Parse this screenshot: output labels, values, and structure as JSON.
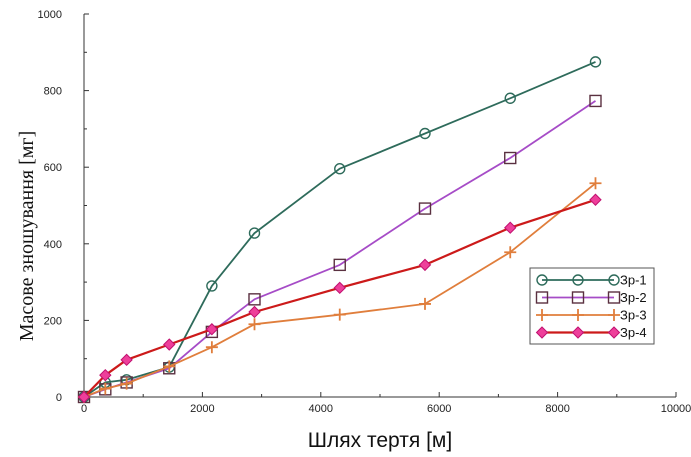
{
  "chart_data": {
    "type": "line",
    "title": "",
    "xlabel": "Шлях тертя [м]",
    "ylabel": "Масове зношування [мг]",
    "xlim": [
      0,
      10000
    ],
    "ylim": [
      0,
      1000
    ],
    "xticks": [
      "0",
      "2000",
      "4000",
      "6000",
      "8000",
      "10000"
    ],
    "yticks": [
      "0",
      "200",
      "400",
      "600",
      "800",
      "1000"
    ],
    "grid": false,
    "legend_position": "right",
    "series": [
      {
        "name": "Зр-1",
        "color": "#2e6b5b",
        "marker": "circle",
        "x": [
          0,
          360,
          720,
          1440,
          2160,
          2880,
          4320,
          5760,
          7200,
          8640
        ],
        "y": [
          0,
          38,
          45,
          78,
          290,
          428,
          596,
          688,
          780,
          875
        ]
      },
      {
        "name": "Зр-2",
        "color": "#a64cc7",
        "marker": "square",
        "x": [
          0,
          360,
          720,
          1440,
          2160,
          2880,
          4320,
          5760,
          7200,
          8640
        ],
        "y": [
          0,
          20,
          38,
          75,
          170,
          255,
          345,
          492,
          624,
          773
        ]
      },
      {
        "name": "Зр-3",
        "color": "#e07e3c",
        "marker": "plus",
        "x": [
          0,
          360,
          720,
          1440,
          2160,
          2880,
          4320,
          5760,
          7200,
          8640
        ],
        "y": [
          0,
          22,
          35,
          80,
          130,
          190,
          215,
          243,
          378,
          558
        ]
      },
      {
        "name": "Зр-4",
        "color": "#cc1a1a",
        "marker_color": "#ee3f9a",
        "marker": "diamond",
        "x": [
          0,
          360,
          720,
          1440,
          2160,
          2880,
          4320,
          5760,
          7200,
          8640
        ],
        "y": [
          0,
          57,
          97,
          137,
          177,
          222,
          285,
          345,
          442,
          515
        ]
      }
    ]
  }
}
